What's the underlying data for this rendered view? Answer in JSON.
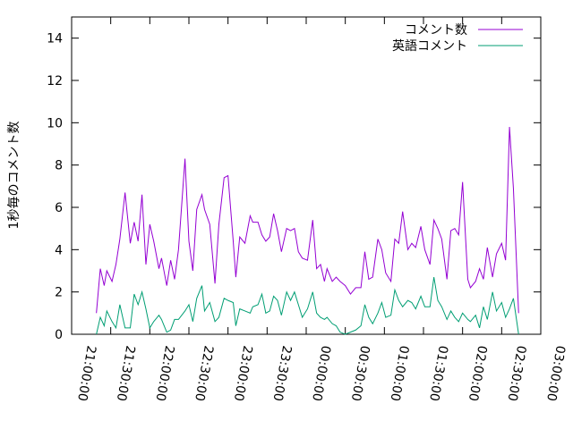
{
  "chart_data": {
    "type": "line",
    "ylabel": "1秒毎のコメント数",
    "xlim": [
      0,
      360
    ],
    "xticks": [
      {
        "value": 0,
        "label": "21:00:00"
      },
      {
        "value": 30,
        "label": "21:30:00"
      },
      {
        "value": 60,
        "label": "22:00:00"
      },
      {
        "value": 90,
        "label": "22:30:00"
      },
      {
        "value": 120,
        "label": "23:00:00"
      },
      {
        "value": 150,
        "label": "23:30:00"
      },
      {
        "value": 180,
        "label": "00:00:00"
      },
      {
        "value": 210,
        "label": "00:30:00"
      },
      {
        "value": 240,
        "label": "01:00:00"
      },
      {
        "value": 270,
        "label": "01:30:00"
      },
      {
        "value": 300,
        "label": "02:00:00"
      },
      {
        "value": 330,
        "label": "02:30:00"
      },
      {
        "value": 360,
        "label": "03:00:00"
      }
    ],
    "ylim": [
      0,
      15
    ],
    "yticks": [
      0,
      2,
      4,
      6,
      8,
      10,
      12,
      14
    ],
    "legend": "top-right",
    "x": [
      19,
      22,
      25,
      27,
      31,
      34,
      37,
      41,
      45,
      48,
      51,
      54,
      57,
      60,
      63,
      67,
      69,
      73,
      76,
      79,
      82,
      87,
      90,
      93,
      96,
      100,
      102,
      106,
      110,
      113,
      117,
      120,
      124,
      126,
      129,
      133,
      137,
      139,
      143,
      146,
      149,
      152,
      155,
      158,
      161,
      165,
      168,
      171,
      174,
      177,
      181,
      185,
      188,
      191,
      194,
      196,
      200,
      203,
      206,
      210,
      214,
      218,
      222,
      225,
      228,
      231,
      235,
      238,
      241,
      245,
      248,
      251,
      254,
      258,
      261,
      264,
      268,
      271,
      275,
      278,
      281,
      284,
      288,
      291,
      294,
      297,
      300,
      304,
      306,
      310,
      313,
      316,
      319,
      323,
      326,
      330,
      333,
      336,
      339,
      343
    ],
    "series": [
      {
        "name": "コメント数",
        "color": "#9400d3",
        "values": [
          1.0,
          3.1,
          2.3,
          3.0,
          2.5,
          3.3,
          4.5,
          6.7,
          4.3,
          5.3,
          4.4,
          6.6,
          3.3,
          5.2,
          4.4,
          3.1,
          3.6,
          2.3,
          3.5,
          2.6,
          4.0,
          8.3,
          4.4,
          3.0,
          5.9,
          6.6,
          5.9,
          5.2,
          2.4,
          5.2,
          7.4,
          7.5,
          4.4,
          2.7,
          4.6,
          4.3,
          5.6,
          5.3,
          5.3,
          4.7,
          4.4,
          4.6,
          5.7,
          4.9,
          3.9,
          5.0,
          4.9,
          5.0,
          3.9,
          3.6,
          3.5,
          5.4,
          3.1,
          3.3,
          2.5,
          3.1,
          2.5,
          2.7,
          2.5,
          2.3,
          1.9,
          2.2,
          2.2,
          3.9,
          2.6,
          2.7,
          4.5,
          4.0,
          2.9,
          2.5,
          4.5,
          4.3,
          5.8,
          4.0,
          4.3,
          4.1,
          5.1,
          4.0,
          3.3,
          5.4,
          5.0,
          4.5,
          2.6,
          4.9,
          5.0,
          4.7,
          7.2,
          2.6,
          2.2,
          2.5,
          3.1,
          2.6,
          4.1,
          2.7,
          3.8,
          4.3,
          3.5,
          9.8,
          6.9,
          1.0
        ]
      },
      {
        "name": "英語コメント",
        "color": "#009e73",
        "values": [
          0.0,
          0.8,
          0.4,
          1.1,
          0.6,
          0.3,
          1.4,
          0.3,
          0.3,
          1.9,
          1.4,
          2.0,
          1.2,
          0.3,
          0.6,
          0.9,
          0.7,
          0.1,
          0.2,
          0.7,
          0.7,
          1.1,
          1.4,
          0.6,
          1.7,
          2.3,
          1.1,
          1.5,
          0.6,
          0.8,
          1.7,
          1.6,
          1.5,
          0.4,
          1.2,
          1.1,
          1.0,
          1.3,
          1.4,
          1.9,
          1.0,
          1.1,
          1.8,
          1.6,
          0.9,
          2.0,
          1.6,
          2.0,
          1.4,
          0.8,
          1.2,
          2.0,
          1.0,
          0.8,
          0.7,
          0.8,
          0.5,
          0.4,
          0.1,
          0.0,
          0.1,
          0.2,
          0.4,
          1.4,
          0.8,
          0.5,
          1.0,
          1.5,
          0.8,
          0.9,
          2.1,
          1.6,
          1.3,
          1.6,
          1.5,
          1.2,
          1.8,
          1.3,
          1.3,
          2.7,
          1.6,
          1.3,
          0.7,
          1.1,
          0.8,
          0.6,
          1.0,
          0.7,
          0.6,
          0.9,
          0.3,
          1.3,
          0.7,
          2.0,
          1.1,
          1.5,
          0.8,
          1.2,
          1.7,
          0.0
        ]
      }
    ]
  }
}
